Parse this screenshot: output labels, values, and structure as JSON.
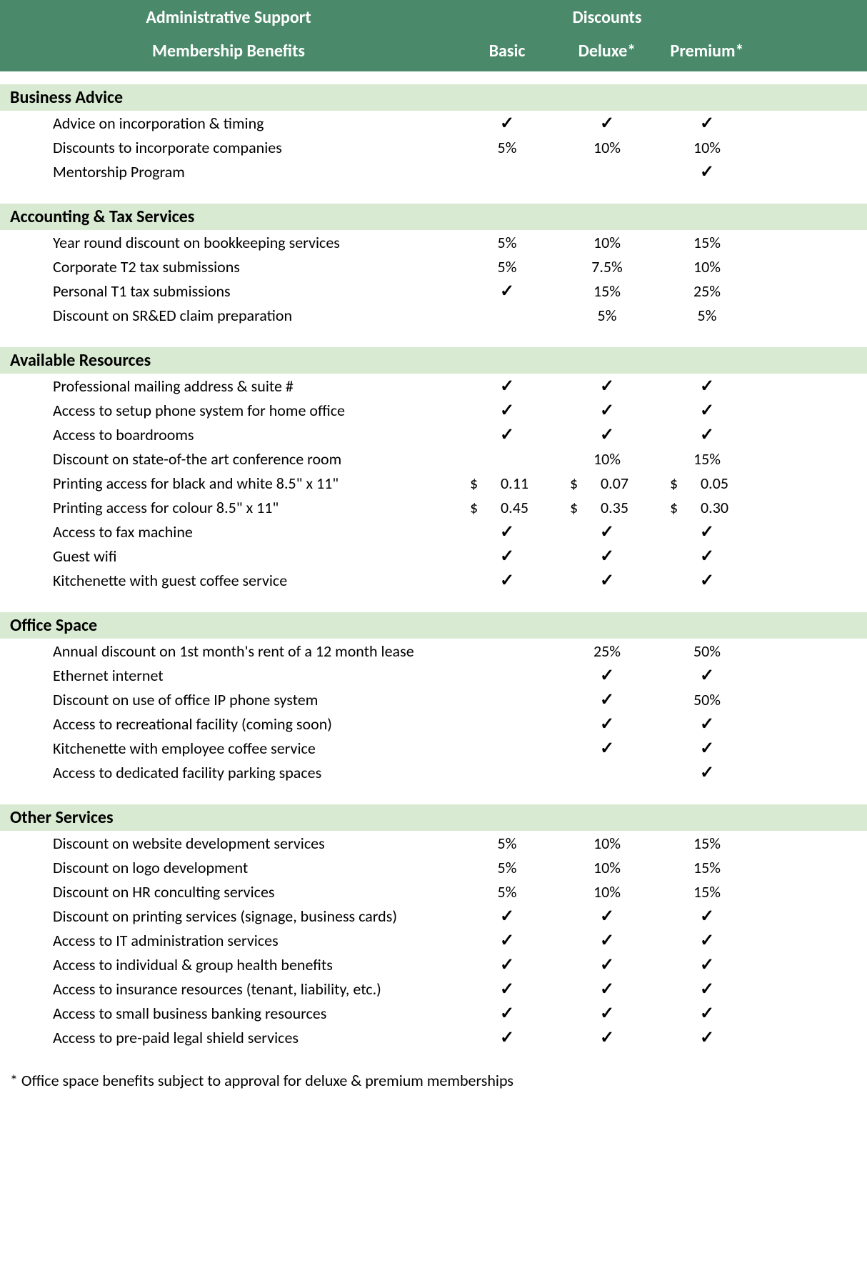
{
  "header": {
    "title_left": "Administrative Support",
    "title_right": "Discounts",
    "benefits_label": "Membership Benefits",
    "columns": [
      "Basic",
      "Deluxe*",
      "Premium*"
    ]
  },
  "colors": {
    "header_bg": "#4a8a6a",
    "section_bg": "#d9ead3",
    "text": "#000000",
    "header_text": "#ffffff"
  },
  "sections": [
    {
      "title": "Business Advice",
      "rows": [
        {
          "label": "Advice on incorporation & timing",
          "cells": [
            {
              "t": "check"
            },
            {
              "t": "check"
            },
            {
              "t": "check"
            }
          ]
        },
        {
          "label": "Discounts to incorporate companies",
          "cells": [
            {
              "t": "text",
              "v": "5%"
            },
            {
              "t": "text",
              "v": "10%"
            },
            {
              "t": "text",
              "v": "10%"
            }
          ]
        },
        {
          "label": "Mentorship Program",
          "cells": [
            {
              "t": "blank"
            },
            {
              "t": "blank"
            },
            {
              "t": "check"
            }
          ]
        }
      ]
    },
    {
      "title": "Accounting & Tax Services",
      "rows": [
        {
          "label": "Year round discount on bookkeeping services",
          "cells": [
            {
              "t": "text",
              "v": "5%"
            },
            {
              "t": "text",
              "v": "10%"
            },
            {
              "t": "text",
              "v": "15%"
            }
          ]
        },
        {
          "label": "Corporate T2 tax submissions",
          "cells": [
            {
              "t": "text",
              "v": "5%"
            },
            {
              "t": "text",
              "v": "7.5%"
            },
            {
              "t": "text",
              "v": "10%"
            }
          ]
        },
        {
          "label": "Personal T1 tax submissions",
          "cells": [
            {
              "t": "check"
            },
            {
              "t": "text",
              "v": "15%"
            },
            {
              "t": "text",
              "v": "25%"
            }
          ]
        },
        {
          "label": "Discount on SR&ED claim preparation",
          "cells": [
            {
              "t": "blank"
            },
            {
              "t": "text",
              "v": "5%"
            },
            {
              "t": "text",
              "v": "5%"
            }
          ]
        }
      ]
    },
    {
      "title": "Available Resources",
      "rows": [
        {
          "label": "Professional mailing address & suite #",
          "cells": [
            {
              "t": "check"
            },
            {
              "t": "check"
            },
            {
              "t": "check"
            }
          ]
        },
        {
          "label": "Access to setup phone system for home office",
          "cells": [
            {
              "t": "check"
            },
            {
              "t": "check"
            },
            {
              "t": "check"
            }
          ]
        },
        {
          "label": "Access to boardrooms",
          "cells": [
            {
              "t": "check"
            },
            {
              "t": "check"
            },
            {
              "t": "check"
            }
          ]
        },
        {
          "label": "Discount on state-of-the art conference room",
          "cells": [
            {
              "t": "blank"
            },
            {
              "t": "text",
              "v": "10%"
            },
            {
              "t": "text",
              "v": "15%"
            }
          ]
        },
        {
          "label": "Printing access for black and white 8.5\" x 11\"",
          "cells": [
            {
              "t": "price",
              "v": "0.11"
            },
            {
              "t": "price",
              "v": "0.07"
            },
            {
              "t": "price",
              "v": "0.05"
            }
          ]
        },
        {
          "label": "Printing access for colour 8.5\" x 11\"",
          "cells": [
            {
              "t": "price",
              "v": "0.45"
            },
            {
              "t": "price",
              "v": "0.35"
            },
            {
              "t": "price",
              "v": "0.30"
            }
          ]
        },
        {
          "label": "Access to fax machine",
          "cells": [
            {
              "t": "check"
            },
            {
              "t": "check"
            },
            {
              "t": "check"
            }
          ]
        },
        {
          "label": "Guest wifi",
          "cells": [
            {
              "t": "check"
            },
            {
              "t": "check"
            },
            {
              "t": "check"
            }
          ]
        },
        {
          "label": "Kitchenette with guest coffee service",
          "cells": [
            {
              "t": "check"
            },
            {
              "t": "check"
            },
            {
              "t": "check"
            }
          ]
        }
      ]
    },
    {
      "title": "Office Space",
      "rows": [
        {
          "label": "Annual discount on 1st month's rent of a 12 month lease",
          "cells": [
            {
              "t": "blank"
            },
            {
              "t": "text",
              "v": "25%"
            },
            {
              "t": "text",
              "v": "50%"
            }
          ]
        },
        {
          "label": "Ethernet internet",
          "cells": [
            {
              "t": "blank"
            },
            {
              "t": "check"
            },
            {
              "t": "check"
            }
          ]
        },
        {
          "label": "Discount on use of office IP phone system",
          "cells": [
            {
              "t": "blank"
            },
            {
              "t": "check"
            },
            {
              "t": "text",
              "v": "50%"
            }
          ]
        },
        {
          "label": "Access to recreational facility (coming soon)",
          "cells": [
            {
              "t": "blank"
            },
            {
              "t": "check"
            },
            {
              "t": "check"
            }
          ]
        },
        {
          "label": "Kitchenette with employee coffee service",
          "cells": [
            {
              "t": "blank"
            },
            {
              "t": "check"
            },
            {
              "t": "check"
            }
          ]
        },
        {
          "label": "Access to dedicated facility parking spaces",
          "cells": [
            {
              "t": "blank"
            },
            {
              "t": "blank"
            },
            {
              "t": "check"
            }
          ]
        }
      ]
    },
    {
      "title": "Other Services",
      "rows": [
        {
          "label": "Discount on website development services",
          "cells": [
            {
              "t": "text",
              "v": "5%"
            },
            {
              "t": "text",
              "v": "10%"
            },
            {
              "t": "text",
              "v": "15%"
            }
          ]
        },
        {
          "label": "Discount on logo development",
          "cells": [
            {
              "t": "text",
              "v": "5%"
            },
            {
              "t": "text",
              "v": "10%"
            },
            {
              "t": "text",
              "v": "15%"
            }
          ]
        },
        {
          "label": "Discount on HR conculting services",
          "cells": [
            {
              "t": "text",
              "v": "5%"
            },
            {
              "t": "text",
              "v": "10%"
            },
            {
              "t": "text",
              "v": "15%"
            }
          ]
        },
        {
          "label": "Discount on printing services (signage, business cards)",
          "cells": [
            {
              "t": "check"
            },
            {
              "t": "check"
            },
            {
              "t": "check"
            }
          ]
        },
        {
          "label": "Access to IT administration services",
          "cells": [
            {
              "t": "check"
            },
            {
              "t": "check"
            },
            {
              "t": "check"
            }
          ]
        },
        {
          "label": "Access to individual & group health benefits",
          "cells": [
            {
              "t": "check"
            },
            {
              "t": "check"
            },
            {
              "t": "check"
            }
          ]
        },
        {
          "label": "Access to insurance resources (tenant, liability, etc.)",
          "cells": [
            {
              "t": "check"
            },
            {
              "t": "check"
            },
            {
              "t": "check"
            }
          ]
        },
        {
          "label": "Access to small business banking resources",
          "cells": [
            {
              "t": "check"
            },
            {
              "t": "check"
            },
            {
              "t": "check"
            }
          ]
        },
        {
          "label": "Access to pre-paid legal shield services",
          "cells": [
            {
              "t": "check"
            },
            {
              "t": "check"
            },
            {
              "t": "check"
            }
          ]
        }
      ]
    }
  ],
  "footnote": "* Office space benefits subject to approval for deluxe & premium memberships",
  "currency_symbol": "$"
}
